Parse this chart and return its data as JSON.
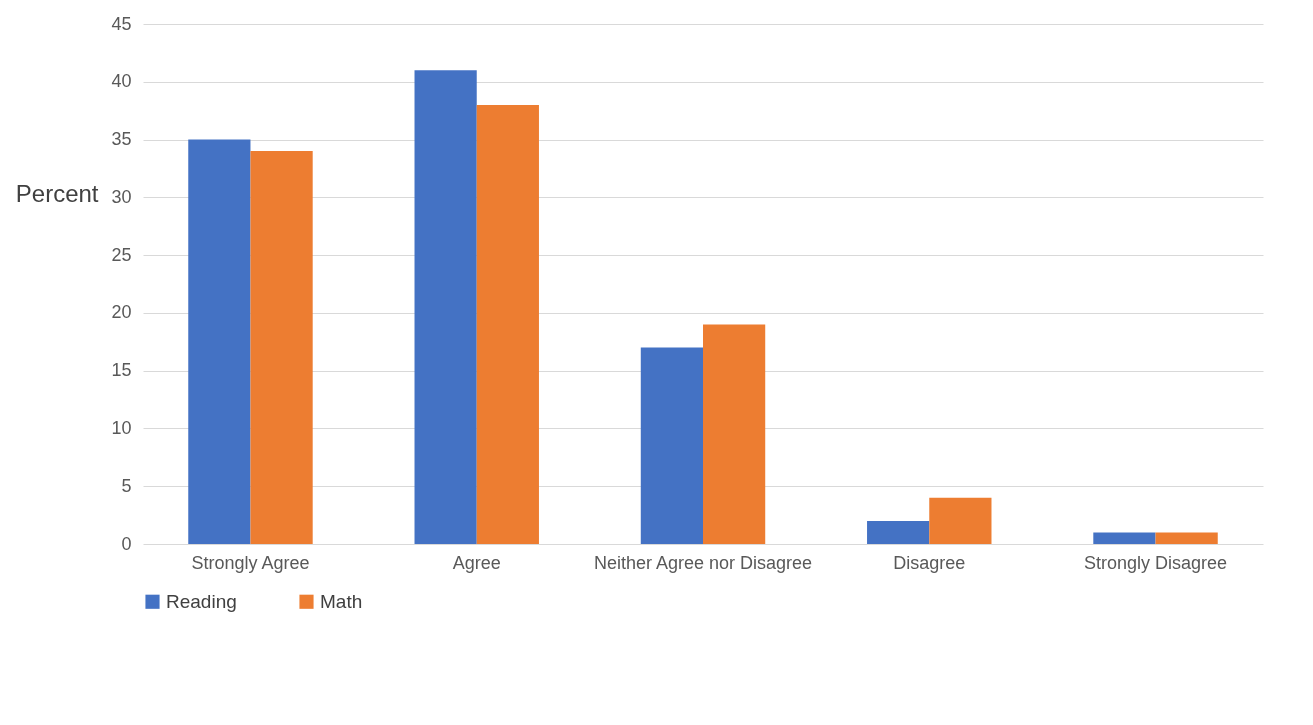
{
  "chart_data": {
    "type": "bar",
    "ylabel": "Percent",
    "categories": [
      "Strongly Agree",
      "Agree",
      "Neither Agree nor Disagree",
      "Disagree",
      "Strongly Disagree"
    ],
    "series": [
      {
        "name": "Reading",
        "color": "#4472c4",
        "values": [
          35,
          41,
          17,
          2,
          1
        ]
      },
      {
        "name": "Math",
        "color": "#ed7d31",
        "values": [
          34,
          38,
          19,
          4,
          1
        ]
      }
    ],
    "ylim": [
      0,
      45
    ],
    "yticks": [
      0,
      5,
      10,
      15,
      20,
      25,
      30,
      35,
      40,
      45
    ],
    "grid": "y",
    "legend": "bottom"
  }
}
